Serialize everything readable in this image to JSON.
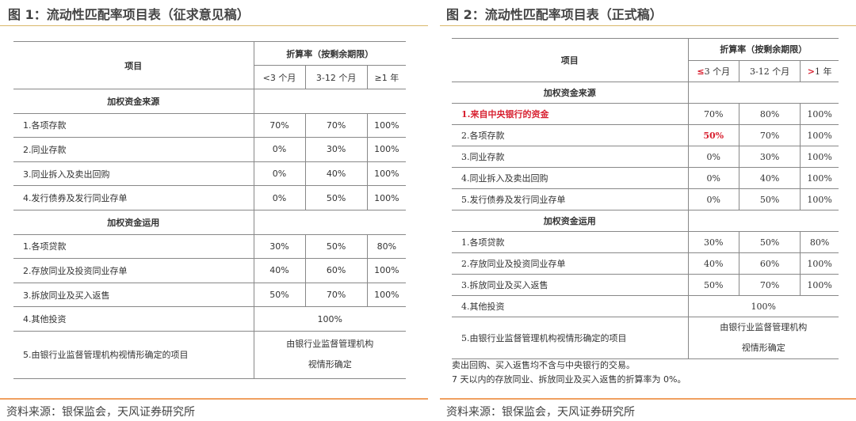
{
  "left": {
    "title": "图 1：流动性匹配率项目表（征求意见稿）",
    "header": {
      "item": "项目",
      "rate": "折算率（按剩余期限）",
      "cols": [
        "<3 个月",
        "3-12 个月",
        "≥1 年"
      ]
    },
    "sections": [
      {
        "name": "加权资金来源",
        "rows": [
          {
            "label": "1.各项存款",
            "v": [
              "70%",
              "70%",
              "100%"
            ]
          },
          {
            "label": "2.同业存款",
            "v": [
              "0%",
              "30%",
              "100%"
            ]
          },
          {
            "label": "3.同业拆入及卖出回购",
            "v": [
              "0%",
              "40%",
              "100%"
            ]
          },
          {
            "label": "4.发行债券及发行同业存单",
            "v": [
              "0%",
              "50%",
              "100%"
            ]
          }
        ]
      },
      {
        "name": "加权资金运用",
        "rows": [
          {
            "label": "1.各项贷款",
            "v": [
              "30%",
              "50%",
              "80%"
            ]
          },
          {
            "label": "2.存放同业及投资同业存单",
            "v": [
              "40%",
              "60%",
              "100%"
            ]
          },
          {
            "label": "3.拆放同业及买入返售",
            "v": [
              "50%",
              "70%",
              "100%"
            ]
          }
        ]
      }
    ],
    "other": {
      "label": "4.其他投资",
      "value": "100%"
    },
    "fifth": {
      "label": "5.由银行业监督管理机构视情形确定的项目",
      "value1": "由银行业监督管理机构",
      "value2": "视情形确定"
    },
    "source": "资料来源：银保监会，天风证券研究所"
  },
  "right": {
    "title": "图 2：流动性匹配率项目表（正式稿）",
    "header": {
      "item": "项目",
      "rate": "折算率（按剩余期限）",
      "cols_red": [
        "≤",
        "",
        ">"
      ],
      "cols": [
        "3 个月",
        "3-12 个月",
        "1 年"
      ]
    },
    "sections": [
      {
        "name": "加权资金来源",
        "rows": [
          {
            "label": "1.来自中央银行的资金",
            "v": [
              "70%",
              "80%",
              "100%"
            ],
            "highlight": "label"
          },
          {
            "label": "2.各项存款",
            "v": [
              "50%",
              "70%",
              "100%"
            ],
            "highlight": "first"
          },
          {
            "label": "3.同业存款",
            "v": [
              "0%",
              "30%",
              "100%"
            ]
          },
          {
            "label": "4.同业拆入及卖出回购",
            "v": [
              "0%",
              "40%",
              "100%"
            ]
          },
          {
            "label": "5.发行债券及发行同业存单",
            "v": [
              "0%",
              "50%",
              "100%"
            ]
          }
        ]
      },
      {
        "name": "加权资金运用",
        "rows": [
          {
            "label": "1.各项贷款",
            "v": [
              "30%",
              "50%",
              "80%"
            ]
          },
          {
            "label": "2.存放同业及投资同业存单",
            "v": [
              "40%",
              "60%",
              "100%"
            ]
          },
          {
            "label": "3.拆放同业及买入返售",
            "v": [
              "50%",
              "70%",
              "100%"
            ]
          }
        ]
      }
    ],
    "other": {
      "label": "4.其他投资",
      "value": "100%"
    },
    "fifth": {
      "label": "5.由银行业监督管理机构视情形确定的项目",
      "value1": "由银行业监督管理机构",
      "value2": "视情形确定"
    },
    "notes": [
      "卖出回购、买入返售均不含与中央银行的交易。",
      "7 天以内的存放同业、拆放同业及买入返售的折算率为 0%。"
    ],
    "highlight_color": "#d82030",
    "source": "资料来源：银保监会，天风证券研究所"
  }
}
